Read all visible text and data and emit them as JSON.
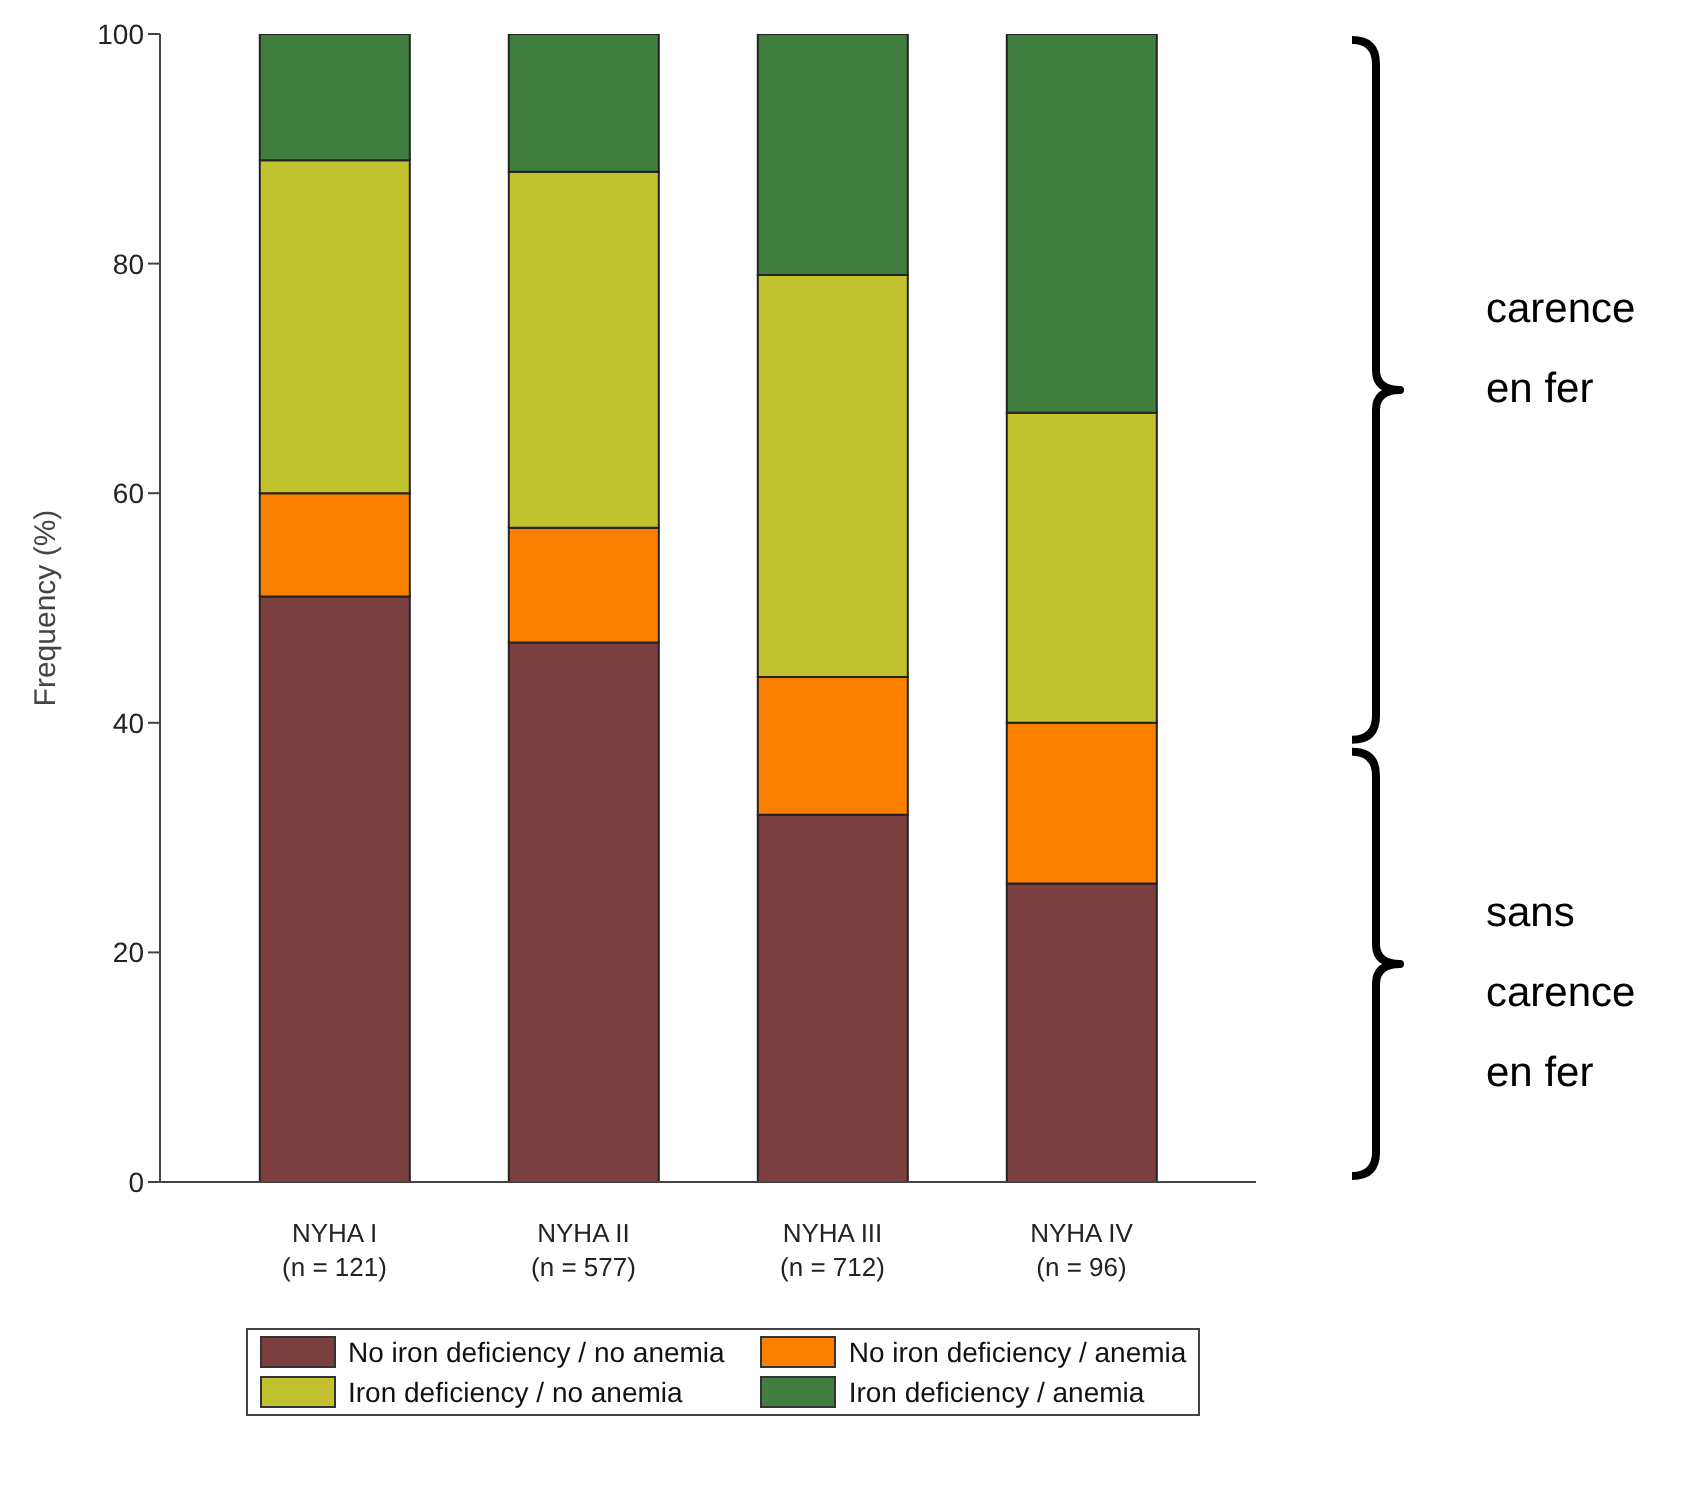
{
  "chart_data": {
    "type": "bar",
    "stacked": true,
    "ylabel": "Frequency (%)",
    "categories": [
      "NYHA I\n(n = 121)",
      "NYHA II\n(n = 577)",
      "NYHA III\n(n = 712)",
      "NYHA IV\n(n = 96)"
    ],
    "series": [
      {
        "name": "No iron deficiency / no anemia",
        "color": "#7b3f40",
        "values": [
          51,
          47,
          32,
          26
        ]
      },
      {
        "name": "No iron deficiency / anemia",
        "color": "#fb8000",
        "values": [
          9,
          10,
          12,
          14
        ]
      },
      {
        "name": "Iron deficiency / no anemia",
        "color": "#c2c22e",
        "values": [
          29,
          31,
          35,
          27
        ]
      },
      {
        "name": "Iron deficiency / anemia",
        "color": "#3f7e3f",
        "values": [
          11,
          12,
          21,
          33
        ]
      }
    ],
    "ylim": [
      0,
      100
    ],
    "yticks": [
      0,
      20,
      40,
      60,
      80,
      100
    ],
    "grid": false,
    "legend": "bottom",
    "annotations": [
      "carence en fer",
      "sans carence en fer"
    ]
  }
}
